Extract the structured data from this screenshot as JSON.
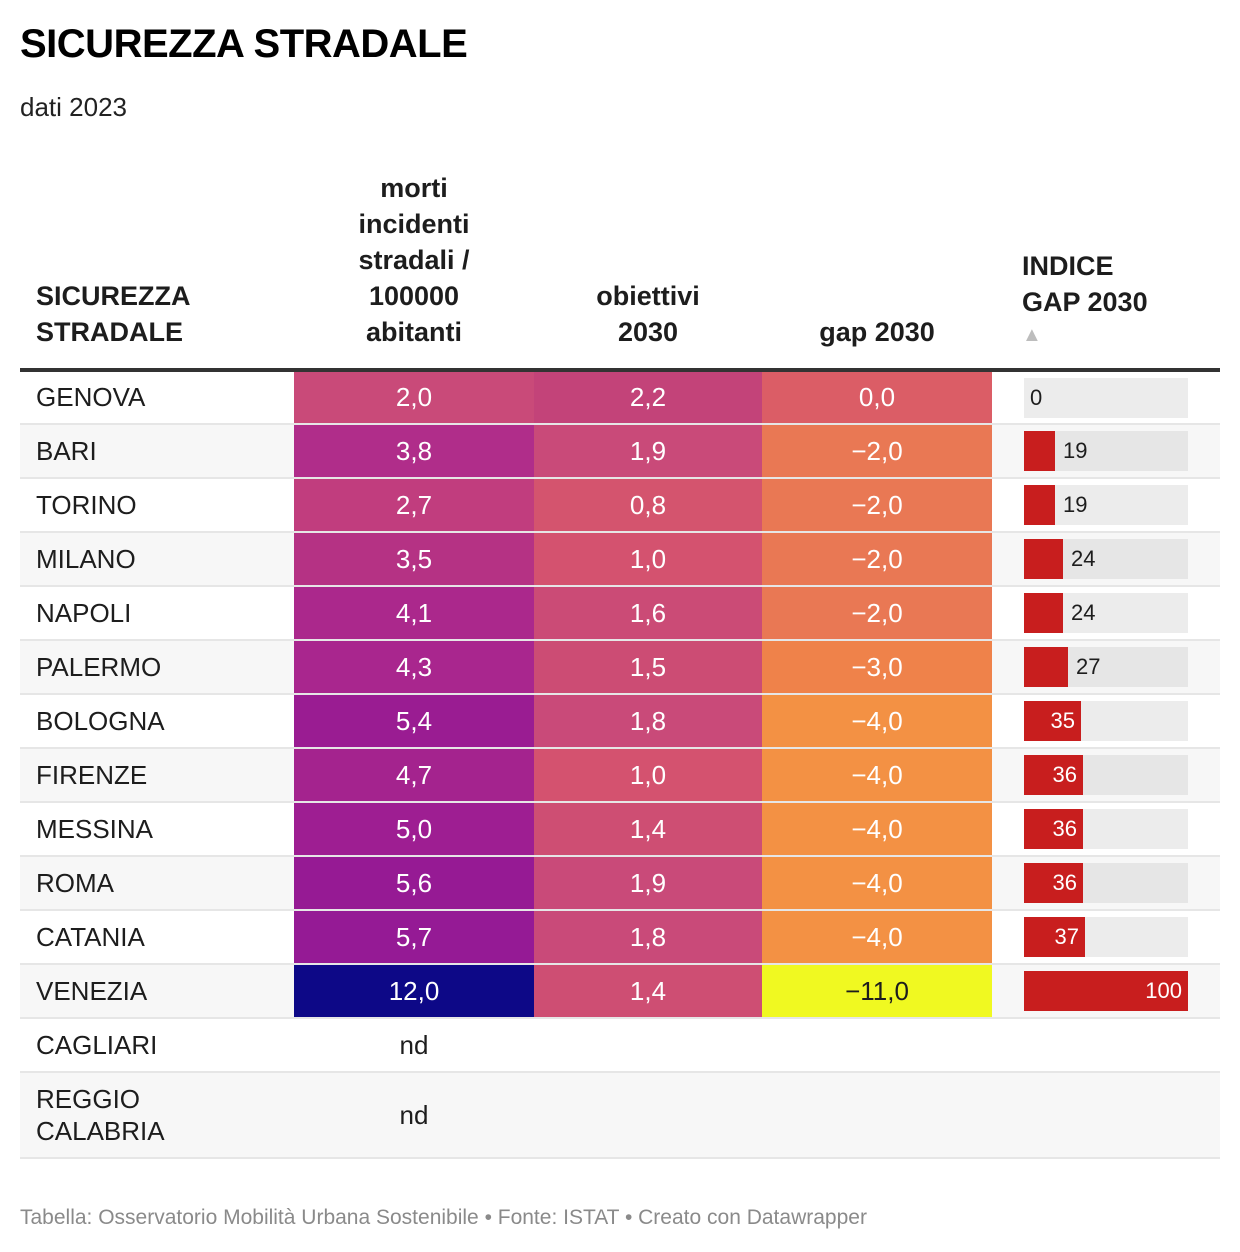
{
  "header": {
    "title": "SICUREZZA STRADALE",
    "subtitle": "dati 2023"
  },
  "table": {
    "columns": [
      {
        "key": "city",
        "label_lines": [
          "SICUREZZA",
          "STRADALE"
        ]
      },
      {
        "key": "morti",
        "label_lines": [
          "morti",
          "incidenti",
          "stradali /",
          "100000",
          "abitanti"
        ]
      },
      {
        "key": "obiettivi",
        "label_lines": [
          "obiettivi",
          "2030"
        ]
      },
      {
        "key": "gap",
        "label_lines": [
          "gap 2030"
        ]
      },
      {
        "key": "indice",
        "label_lines": [
          "INDICE",
          "GAP 2030"
        ],
        "sort_indicator": "▲"
      }
    ],
    "bar_color": "#c81e1e",
    "bar_max": 100
  },
  "chart_data": {
    "type": "table",
    "title": "SICUREZZA STRADALE",
    "subtitle": "dati 2023",
    "columns": [
      "SICUREZZA STRADALE",
      "morti incidenti stradali / 100000 abitanti",
      "obiettivi 2030",
      "gap 2030",
      "INDICE GAP 2030"
    ],
    "sorted_by": "INDICE GAP 2030",
    "sort_direction": "ascending",
    "rows": [
      {
        "city": "GENOVA",
        "morti": "2,0",
        "obiettivi": "2,2",
        "gap": "0,0",
        "indice": 0,
        "morti_color": "#c94a79",
        "obi_color": "#c34379",
        "gap_color": "#db5d66"
      },
      {
        "city": "BARI",
        "morti": "3,8",
        "obiettivi": "1,9",
        "gap": "−2,0",
        "indice": 19,
        "morti_color": "#b02d8a",
        "obi_color": "#c94a79",
        "gap_color": "#e97854"
      },
      {
        "city": "TORINO",
        "morti": "2,7",
        "obiettivi": "0,8",
        "gap": "−2,0",
        "indice": 19,
        "morti_color": "#c13d7e",
        "obi_color": "#d4546e",
        "gap_color": "#e97854"
      },
      {
        "city": "MILANO",
        "morti": "3,5",
        "obiettivi": "1,0",
        "gap": "−2,0",
        "indice": 24,
        "morti_color": "#b53284",
        "obi_color": "#d4526f",
        "gap_color": "#e97854"
      },
      {
        "city": "NAPOLI",
        "morti": "4,1",
        "obiettivi": "1,6",
        "gap": "−2,0",
        "indice": 24,
        "morti_color": "#ab288c",
        "obi_color": "#cb4b76",
        "gap_color": "#e97854"
      },
      {
        "city": "PALERMO",
        "morti": "4,3",
        "obiettivi": "1,5",
        "gap": "−3,0",
        "indice": 27,
        "morti_color": "#a9268e",
        "obi_color": "#cc4c74",
        "gap_color": "#ef824a"
      },
      {
        "city": "BOLOGNA",
        "morti": "5,4",
        "obiettivi": "1,8",
        "gap": "−4,0",
        "indice": 35,
        "morti_color": "#9a1c92",
        "obi_color": "#c94a79",
        "gap_color": "#f39144"
      },
      {
        "city": "FIRENZE",
        "morti": "4,7",
        "obiettivi": "1,0",
        "gap": "−4,0",
        "indice": 36,
        "morti_color": "#a4238e",
        "obi_color": "#d4526f",
        "gap_color": "#f39144"
      },
      {
        "city": "MESSINA",
        "morti": "5,0",
        "obiettivi": "1,4",
        "gap": "−4,0",
        "indice": 36,
        "morti_color": "#9e1e92",
        "obi_color": "#ce4e73",
        "gap_color": "#f39144"
      },
      {
        "city": "ROMA",
        "morti": "5,6",
        "obiettivi": "1,9",
        "gap": "−4,0",
        "indice": 36,
        "morti_color": "#961a94",
        "obi_color": "#c94a79",
        "gap_color": "#f39144"
      },
      {
        "city": "CATANIA",
        "morti": "5,7",
        "obiettivi": "1,8",
        "gap": "−4,0",
        "indice": 37,
        "morti_color": "#951a95",
        "obi_color": "#c94a79",
        "gap_color": "#f39144"
      },
      {
        "city": "VENEZIA",
        "morti": "12,0",
        "obiettivi": "1,4",
        "gap": "−11,0",
        "indice": 100,
        "morti_color": "#0d0887",
        "obi_color": "#ce4e73",
        "gap_color": "#f0f921",
        "gap_text_dark": true
      },
      {
        "city": "CAGLIARI",
        "morti": "nd",
        "obiettivi": "",
        "gap": "",
        "indice": null
      },
      {
        "city_lines": [
          "REGGIO",
          "CALABRIA"
        ],
        "city": "REGGIO CALABRIA",
        "morti": "nd",
        "obiettivi": "",
        "gap": "",
        "indice": null
      }
    ]
  },
  "footer": {
    "text": "Tabella: Osservatorio Mobilità Urbana Sostenibile • Fonte: ISTAT • Creato con Datawrapper"
  }
}
